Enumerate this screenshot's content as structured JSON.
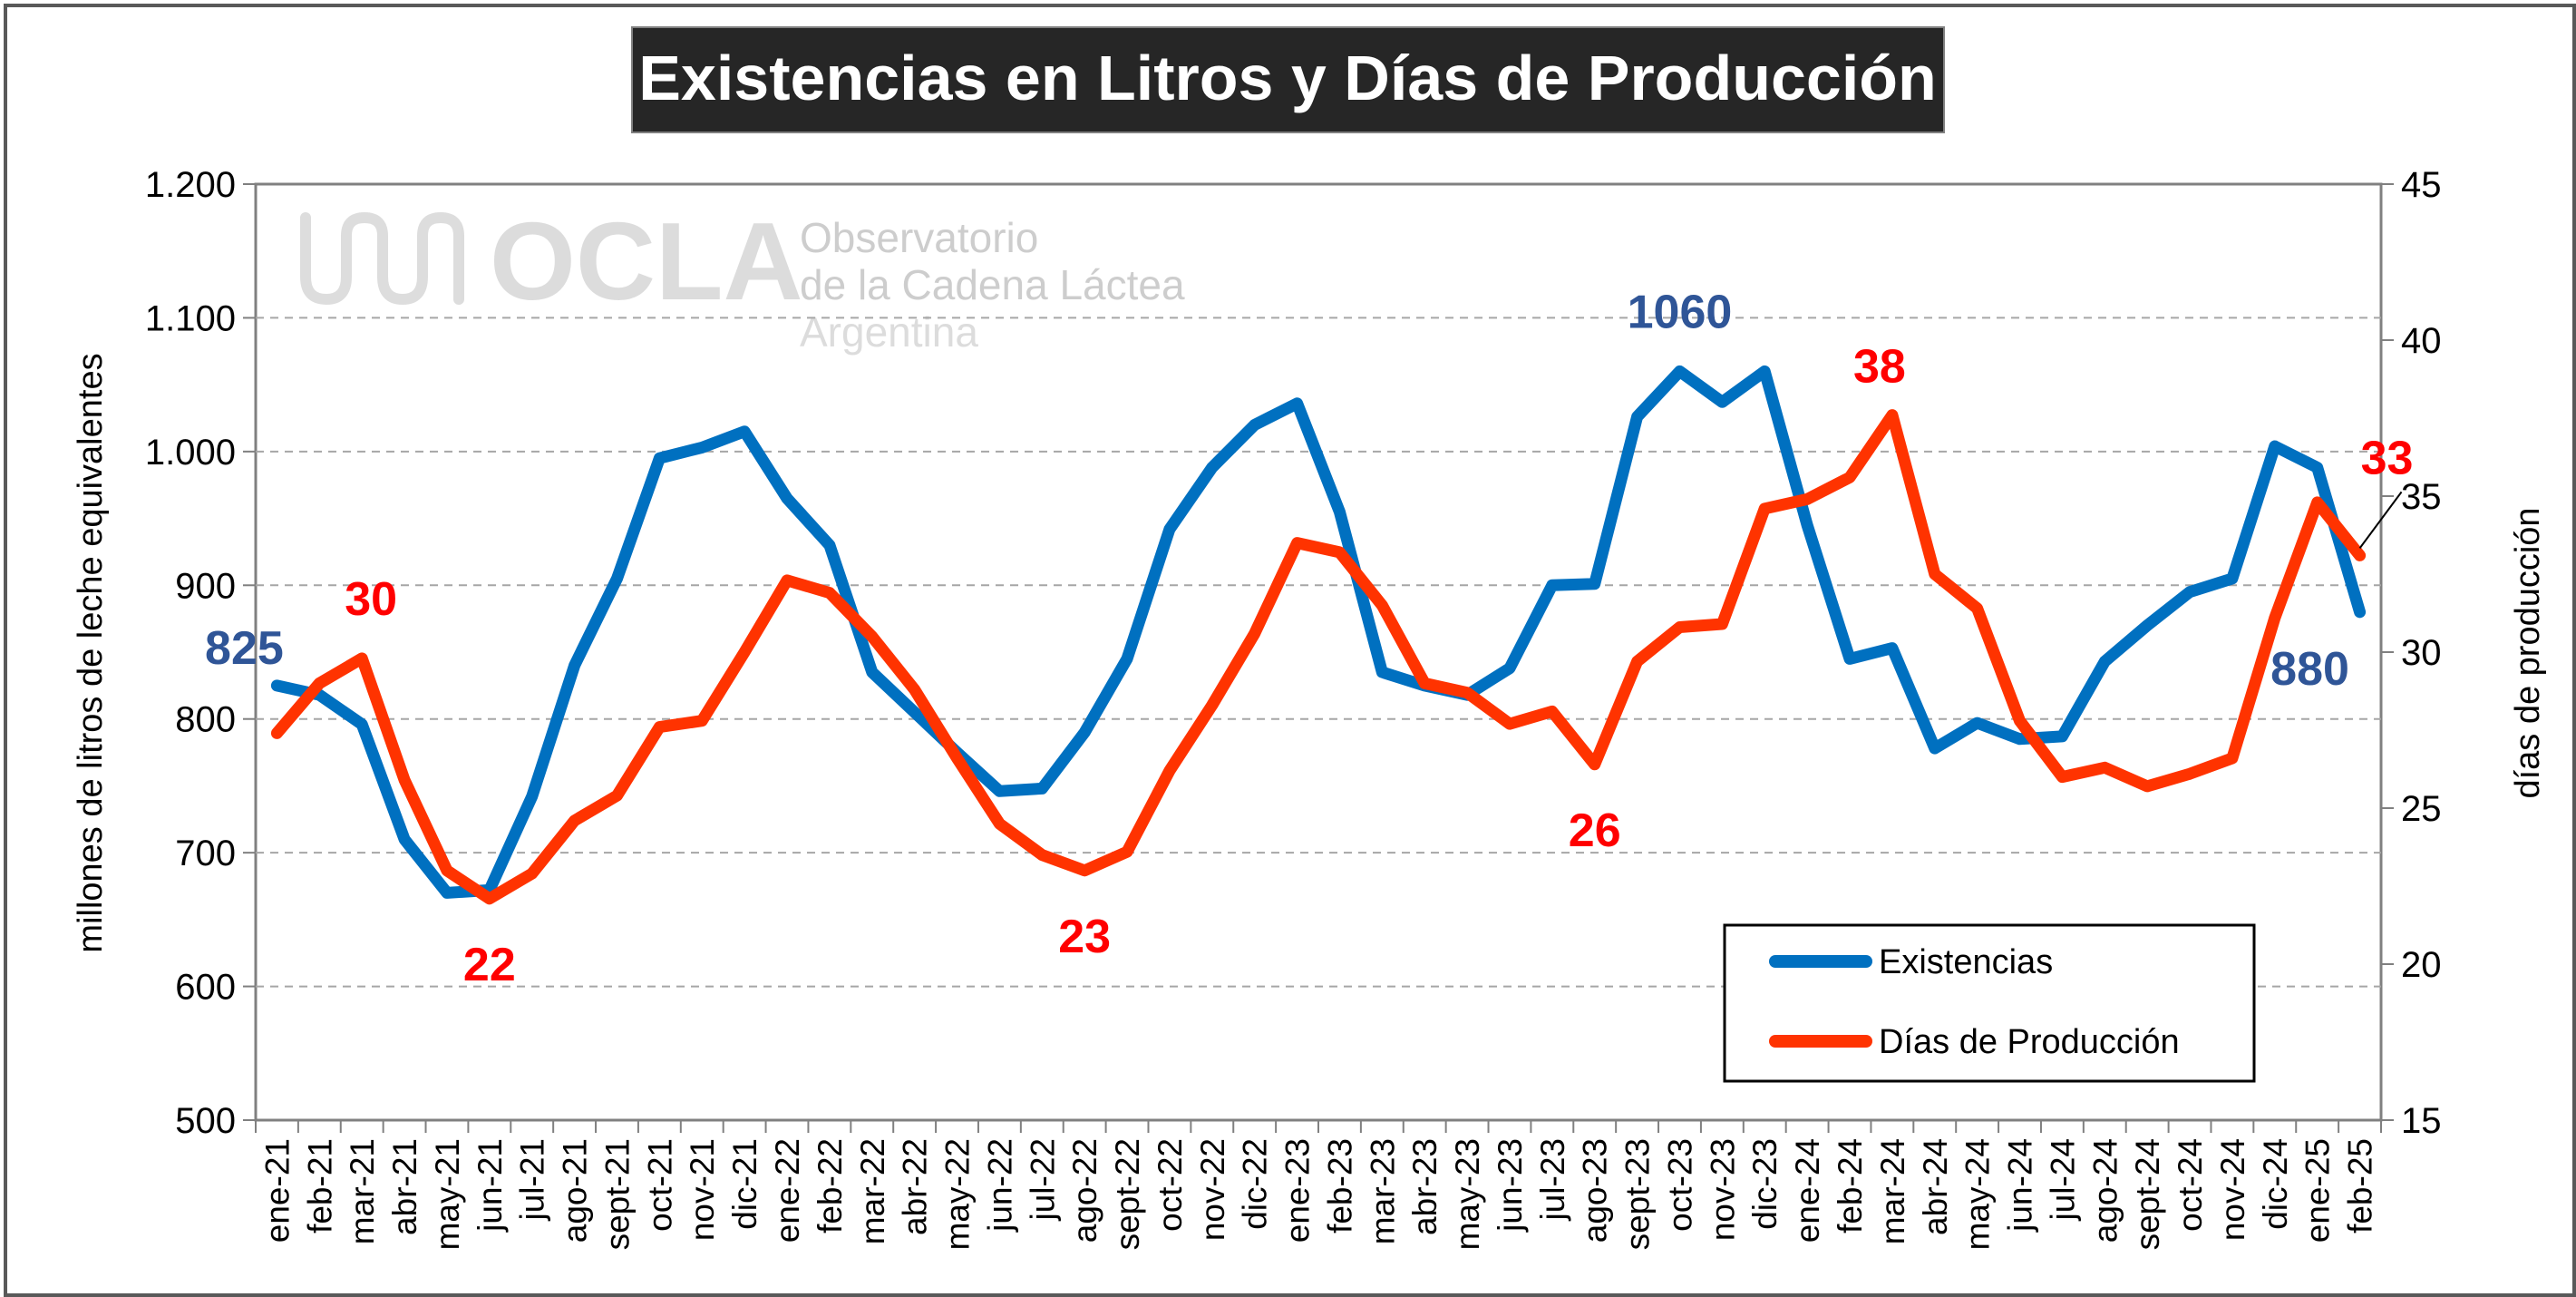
{
  "chart_data": {
    "type": "line",
    "title": "Existencias en Litros y Días de Producción",
    "ylabel": "millones de litros de leche equivalentes",
    "y2label": "días de producción",
    "ylim": [
      500,
      1200
    ],
    "y2lim": [
      15,
      45
    ],
    "yticks": [
      "500",
      "600",
      "700",
      "800",
      "900",
      "1.000",
      "1.100",
      "1.200"
    ],
    "y2ticks": [
      "15",
      "20",
      "25",
      "30",
      "35",
      "40",
      "45"
    ],
    "grid": true,
    "legend_position": "bottom-right",
    "categories": [
      "ene-21",
      "feb-21",
      "mar-21",
      "abr-21",
      "may-21",
      "jun-21",
      "jul-21",
      "ago-21",
      "sept-21",
      "oct-21",
      "nov-21",
      "dic-21",
      "ene-22",
      "feb-22",
      "mar-22",
      "abr-22",
      "may-22",
      "jun-22",
      "jul-22",
      "ago-22",
      "sept-22",
      "oct-22",
      "nov-22",
      "dic-22",
      "ene-23",
      "feb-23",
      "mar-23",
      "abr-23",
      "may-23",
      "jun-23",
      "jul-23",
      "ago-23",
      "sept-23",
      "oct-23",
      "nov-23",
      "dic-23",
      "ene-24",
      "feb-24",
      "mar-24",
      "abr-24",
      "may-24",
      "jun-24",
      "jul-24",
      "ago-24",
      "sept-24",
      "oct-24",
      "nov-24",
      "dic-24",
      "ene-25",
      "feb-25"
    ],
    "series": [
      {
        "name": "Existencias",
        "axis": "left",
        "color": "#0070C0",
        "values": [
          825,
          818,
          796,
          710,
          670,
          672,
          742,
          840,
          905,
          995,
          1003,
          1015,
          965,
          930,
          835,
          805,
          775,
          746,
          748,
          790,
          845,
          942,
          988,
          1020,
          1036,
          955,
          835,
          825,
          818,
          838,
          900,
          901,
          1026,
          1060,
          1037,
          1060,
          945,
          845,
          853,
          778,
          797,
          785,
          787,
          843,
          870,
          895,
          905,
          1004,
          988,
          880
        ]
      },
      {
        "name": "Días de Producción",
        "axis": "right",
        "color": "#FF3300",
        "values": [
          27.4,
          29.0,
          29.8,
          25.9,
          23.0,
          22.1,
          22.9,
          24.6,
          25.4,
          27.6,
          27.8,
          30.0,
          32.3,
          31.9,
          30.5,
          28.8,
          26.6,
          24.5,
          23.5,
          23.0,
          23.6,
          26.2,
          28.3,
          30.6,
          33.5,
          33.2,
          31.5,
          29.0,
          28.7,
          27.7,
          28.1,
          26.4,
          29.7,
          30.8,
          30.9,
          34.6,
          34.9,
          35.6,
          37.6,
          32.5,
          31.4,
          27.8,
          26.0,
          26.3,
          25.7,
          26.1,
          26.6,
          31.1,
          34.8,
          33.1
        ]
      }
    ],
    "annotations": [
      {
        "series": 0,
        "index": 0,
        "text": "825",
        "color": "#2F5597"
      },
      {
        "series": 1,
        "index": 2,
        "text": "30",
        "color": "#FF0000"
      },
      {
        "series": 1,
        "index": 5,
        "text": "22",
        "color": "#FF0000"
      },
      {
        "series": 1,
        "index": 19,
        "text": "23",
        "color": "#FF0000"
      },
      {
        "series": 1,
        "index": 31,
        "text": "26",
        "color": "#FF0000"
      },
      {
        "series": 0,
        "index": 33,
        "text": "1060",
        "color": "#2F5597"
      },
      {
        "series": 1,
        "index": 38,
        "text": "38",
        "color": "#FF0000"
      },
      {
        "series": 1,
        "index": 49,
        "text": "33",
        "color": "#FF0000"
      },
      {
        "series": 0,
        "index": 49,
        "text": "880",
        "color": "#2F5597"
      }
    ]
  },
  "watermark": {
    "logo_text": "OCLA",
    "line1": "Observatorio",
    "line2": "de la Cadena Láctea",
    "line3": "Argentina"
  }
}
